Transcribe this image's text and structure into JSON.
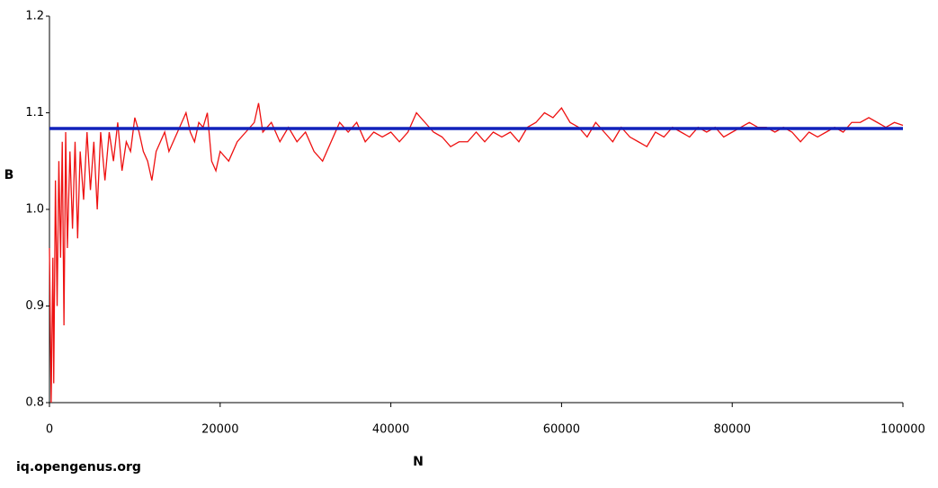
{
  "chart_data": {
    "type": "line",
    "x_label": "N",
    "y_label": "B",
    "watermark": "iq.opengenus.org",
    "xlim": [
      0,
      100000
    ],
    "ylim": [
      0.8,
      1.2
    ],
    "xticks": [
      0,
      20000,
      40000,
      60000,
      80000,
      100000
    ],
    "yticks": [
      0.8,
      0.9,
      {
        "value": 1,
        "label": "1.0"
      },
      1.1,
      1.2
    ],
    "series": [
      {
        "color": "#ee1111",
        "x": [
          0,
          200,
          400,
          500,
          700,
          900,
          1100,
          1300,
          1500,
          1700,
          1900,
          2100,
          2400,
          2700,
          3000,
          3300,
          3600,
          4000,
          4400,
          4800,
          5200,
          5600,
          6000,
          6500,
          7000,
          7500,
          8000,
          8500,
          9000,
          9500,
          10000,
          10500,
          11000,
          11500,
          12000,
          12500,
          13000,
          13500,
          14000,
          14500,
          15000,
          16000,
          16500,
          17000,
          17500,
          18000,
          18500,
          19000,
          19500,
          20000,
          21000,
          22000,
          23000,
          24000,
          24500,
          25000,
          26000,
          27000,
          28000,
          29000,
          30000,
          31000,
          32000,
          33000,
          34000,
          35000,
          36000,
          37000,
          38000,
          39000,
          40000,
          41000,
          42000,
          43000,
          44000,
          45000,
          46000,
          47000,
          48000,
          49000,
          50000,
          51000,
          52000,
          53000,
          54000,
          55000,
          56000,
          57000,
          58000,
          59000,
          60000,
          61000,
          62000,
          63000,
          64000,
          65000,
          66000,
          67000,
          68000,
          69000,
          70000,
          71000,
          72000,
          73000,
          74000,
          75000,
          76000,
          77000,
          78000,
          79000,
          80000,
          81000,
          82000,
          83000,
          84000,
          85000,
          86000,
          87000,
          88000,
          89000,
          90000,
          91000,
          92000,
          93000,
          94000,
          95000,
          96000,
          97000,
          98000,
          99000,
          100000
        ],
        "values": [
          0.96,
          0.8,
          0.95,
          0.82,
          1.03,
          0.9,
          1.05,
          0.95,
          1.07,
          0.88,
          1.08,
          0.96,
          1.06,
          0.98,
          1.07,
          0.97,
          1.06,
          1.01,
          1.08,
          1.02,
          1.07,
          1.0,
          1.08,
          1.03,
          1.08,
          1.05,
          1.09,
          1.04,
          1.07,
          1.06,
          1.095,
          1.08,
          1.06,
          1.05,
          1.03,
          1.06,
          1.07,
          1.08,
          1.06,
          1.07,
          1.08,
          1.1,
          1.08,
          1.07,
          1.09,
          1.085,
          1.1,
          1.05,
          1.04,
          1.06,
          1.05,
          1.07,
          1.08,
          1.09,
          1.11,
          1.08,
          1.09,
          1.07,
          1.085,
          1.07,
          1.08,
          1.06,
          1.05,
          1.07,
          1.09,
          1.08,
          1.09,
          1.07,
          1.08,
          1.075,
          1.08,
          1.07,
          1.08,
          1.1,
          1.09,
          1.08,
          1.075,
          1.065,
          1.07,
          1.07,
          1.08,
          1.07,
          1.08,
          1.075,
          1.08,
          1.07,
          1.085,
          1.09,
          1.1,
          1.095,
          1.105,
          1.09,
          1.085,
          1.075,
          1.09,
          1.08,
          1.07,
          1.085,
          1.075,
          1.07,
          1.065,
          1.08,
          1.075,
          1.085,
          1.08,
          1.075,
          1.085,
          1.08,
          1.085,
          1.075,
          1.08,
          1.085,
          1.09,
          1.085,
          1.085,
          1.08,
          1.085,
          1.08,
          1.07,
          1.08,
          1.075,
          1.08,
          1.085,
          1.08,
          1.09,
          1.09,
          1.095,
          1.09,
          1.085,
          1.09,
          1.087
        ]
      },
      {
        "color": "#1122bb",
        "x": [
          0,
          100000
        ],
        "values": [
          1.0837,
          1.0837
        ]
      }
    ]
  }
}
